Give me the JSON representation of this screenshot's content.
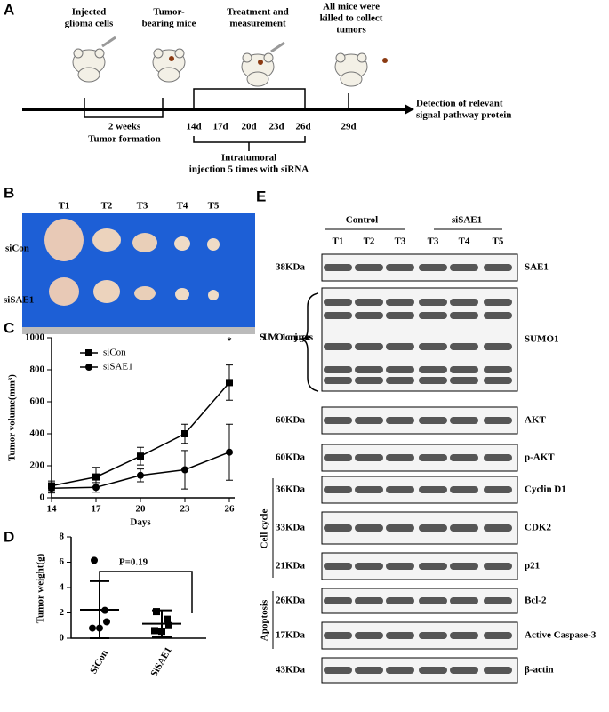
{
  "panel_a": {
    "letter": "A",
    "steps": [
      [
        "Injected",
        "glioma cells"
      ],
      [
        "Tumor-",
        "bearing mice"
      ],
      [
        "Treatment and",
        "measurement"
      ],
      [
        "All mice were",
        "killed to collect",
        "tumors"
      ]
    ],
    "formation": [
      "2 weeks",
      "Tumor formation"
    ],
    "days": [
      "14d",
      "17d",
      "20d",
      "23d",
      "26d",
      "29d"
    ],
    "injection": [
      "Intratumoral",
      "injection 5 times with siRNA"
    ],
    "detection": [
      "Detection of relevant",
      "signal pathway protein"
    ]
  },
  "panel_b": {
    "letter": "B",
    "tumors": [
      "T1",
      "T2",
      "T3",
      "T4",
      "T5"
    ],
    "groups": [
      "siCon",
      "siSAE1"
    ]
  },
  "chart_data": [
    {
      "type": "line",
      "letter": "C",
      "y_label": "Tumor volume(mm³)",
      "x_label": "Days",
      "x": [
        14,
        17,
        20,
        23,
        26
      ],
      "xlim": [
        14,
        26
      ],
      "xticks": [
        14,
        17,
        20,
        23,
        26
      ],
      "ylim": [
        0,
        1000
      ],
      "yticks": [
        0,
        200,
        400,
        600,
        800,
        1000
      ],
      "series": [
        {
          "name": "siCon",
          "marker": "square",
          "color": "#000000",
          "values": [
            75,
            130,
            260,
            400,
            720
          ],
          "errors": [
            30,
            60,
            55,
            60,
            110
          ]
        },
        {
          "name": "siSAE1",
          "marker": "circle",
          "color": "#000000",
          "values": [
            60,
            65,
            140,
            175,
            285
          ],
          "errors": [
            30,
            30,
            40,
            120,
            175
          ]
        }
      ],
      "annotation": "*"
    },
    {
      "type": "dot",
      "letter": "D",
      "y_label": "Tumor weight(g)",
      "categories": [
        "SiCon",
        "SiSAE1"
      ],
      "ylim": [
        0,
        8
      ],
      "yticks": [
        0,
        2,
        4,
        6,
        8
      ],
      "groups": [
        {
          "marker": "circle",
          "values": [
            6.15,
            2.2,
            1.3,
            0.8,
            0.8
          ],
          "mean": 2.25,
          "sd": 2.25
        },
        {
          "marker": "square",
          "values": [
            2.1,
            1.5,
            1.0,
            0.6,
            0.55
          ],
          "mean": 1.15,
          "sd": 1.05
        }
      ],
      "annotation": "P=0.19"
    }
  ],
  "panel_e": {
    "letter": "E",
    "conditions": [
      "Control",
      "siSAE1"
    ],
    "lanes": [
      "T1",
      "T2",
      "T3",
      "T3",
      "T4",
      "T5"
    ],
    "rows": [
      {
        "kda": "38KDa",
        "protein": "SAE1"
      },
      {
        "kda": "SUMO1 conjugates",
        "protein": "SUMO1"
      },
      {
        "kda": "60KDa",
        "protein": "AKT"
      },
      {
        "kda": "60KDa",
        "protein": "p-AKT"
      },
      {
        "kda": "36KDa",
        "protein": "Cyclin D1"
      },
      {
        "kda": "33KDa",
        "protein": "CDK2"
      },
      {
        "kda": "21KDa",
        "protein": "p21"
      },
      {
        "kda": "26KDa",
        "protein": "Bcl-2"
      },
      {
        "kda": "17KDa",
        "protein": "Active Caspase-3"
      },
      {
        "kda": "43KDa",
        "protein": "β-actin"
      }
    ],
    "row_groups": [
      "Cell cycle",
      "Apoptosis"
    ]
  }
}
